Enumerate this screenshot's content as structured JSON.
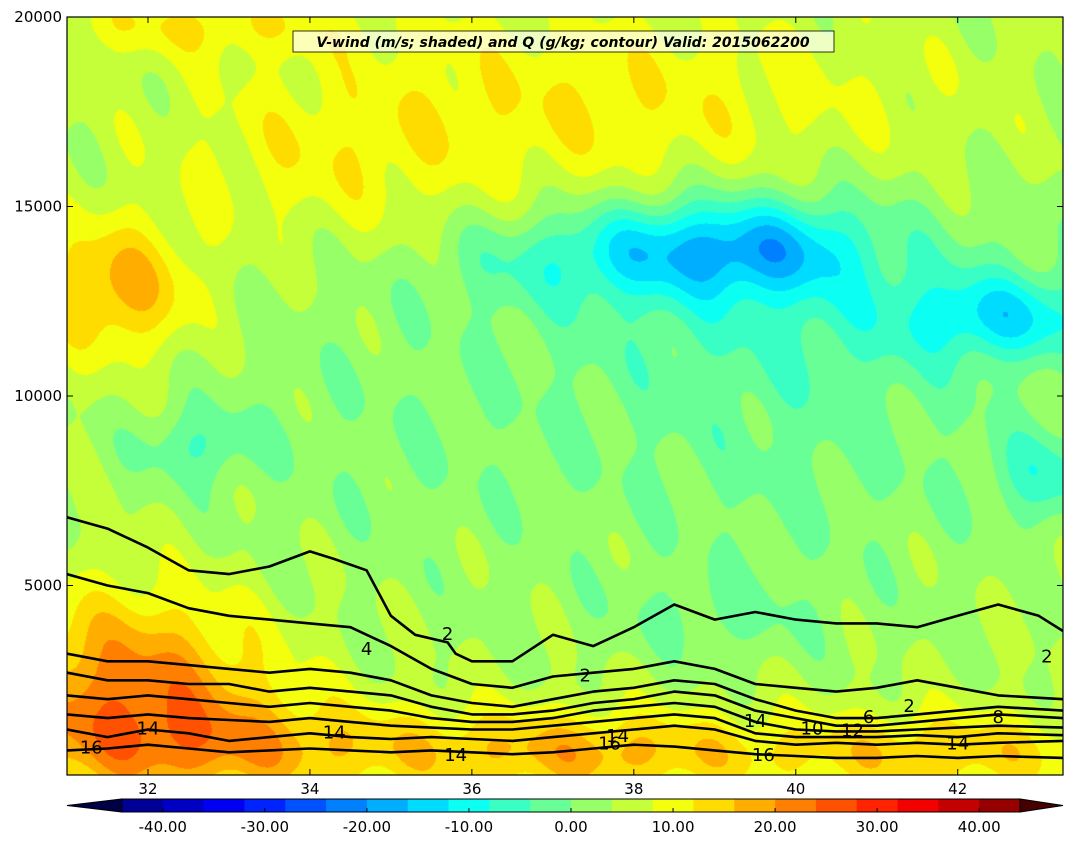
{
  "chart_data": {
    "type": "heatmap",
    "title": "V-wind (m/s; shaded) and Q (g/kg; contour) Valid: 2015062200",
    "xlabel": "",
    "ylabel": "",
    "xlim": [
      31.0,
      43.3
    ],
    "ylim": [
      0,
      20000
    ],
    "x_ticks": [
      32,
      34,
      36,
      38,
      40,
      42
    ],
    "y_ticks": [
      5000,
      10000,
      15000,
      20000
    ],
    "colorbar": {
      "ticks": [
        -40,
        -30,
        -20,
        -10,
        0,
        10,
        20,
        30,
        40
      ],
      "tick_labels": [
        "-40.00",
        "-30.00",
        "-20.00",
        "-10.00",
        "0.00",
        "10.00",
        "20.00",
        "30.00",
        "40.00"
      ],
      "range": [
        -44,
        44
      ],
      "step": 4,
      "extend": "both",
      "colormap": "jet"
    },
    "shaded_field": {
      "name": "V-wind (m/s)",
      "background_value": 4,
      "features": [
        {
          "x": 31.6,
          "y": 12800,
          "value": 14,
          "sx": 0.7,
          "sy": 1300
        },
        {
          "x": 31.8,
          "y": 2300,
          "value": 18,
          "sx": 1.2,
          "sy": 1800
        },
        {
          "x": 33.5,
          "y": 700,
          "value": 11,
          "sx": 2.0,
          "sy": 900
        },
        {
          "x": 37.6,
          "y": 600,
          "value": 12,
          "sx": 1.5,
          "sy": 800
        },
        {
          "x": 41.8,
          "y": 600,
          "value": 11,
          "sx": 1.6,
          "sy": 800
        },
        {
          "x": 38.3,
          "y": 13900,
          "value": -11,
          "sx": 0.8,
          "sy": 900
        },
        {
          "x": 39.7,
          "y": 13900,
          "value": -14,
          "sx": 0.8,
          "sy": 900
        },
        {
          "x": 42.6,
          "y": 12100,
          "value": -13,
          "sx": 0.9,
          "sy": 800
        },
        {
          "x": 40.0,
          "y": 12800,
          "value": -8,
          "sx": 2.2,
          "sy": 2200
        },
        {
          "x": 36.8,
          "y": 13600,
          "value": -6,
          "sx": 0.9,
          "sy": 900
        },
        {
          "x": 43.1,
          "y": 7900,
          "value": -9,
          "sx": 0.5,
          "sy": 900
        },
        {
          "x": 32.6,
          "y": 8700,
          "value": -7,
          "sx": 0.5,
          "sy": 700
        },
        {
          "x": 37.5,
          "y": 17500,
          "value": 8,
          "sx": 3.0,
          "sy": 2000
        },
        {
          "x": 34.0,
          "y": 16000,
          "value": 4,
          "sx": 1.2,
          "sy": 1500
        },
        {
          "x": 35.0,
          "y": 9000,
          "value": -3,
          "sx": 2.0,
          "sy": 3000
        },
        {
          "x": 40.0,
          "y": 8000,
          "value": -4,
          "sx": 2.0,
          "sy": 2500
        },
        {
          "x": 39.0,
          "y": 4200,
          "value": -4,
          "sx": 1.0,
          "sy": 800
        },
        {
          "x": 32.5,
          "y": 19800,
          "value": 7,
          "sx": 1.5,
          "sy": 600
        }
      ]
    },
    "contours": {
      "name": "Q (g/kg)",
      "levels": [
        {
          "value": 2,
          "points": [
            [
              31.0,
              6800
            ],
            [
              31.5,
              6500
            ],
            [
              32.0,
              6000
            ],
            [
              32.5,
              5400
            ],
            [
              33.0,
              5300
            ],
            [
              33.5,
              5500
            ],
            [
              34.0,
              5900
            ],
            [
              34.3,
              5700
            ],
            [
              34.7,
              5400
            ],
            [
              35.0,
              4200
            ],
            [
              35.3,
              3700
            ],
            [
              35.7,
              3500
            ],
            [
              35.8,
              3200
            ],
            [
              36.0,
              3000
            ],
            [
              36.5,
              3000
            ],
            [
              37.0,
              3700
            ],
            [
              37.5,
              3400
            ],
            [
              38.0,
              3900
            ],
            [
              38.5,
              4500
            ],
            [
              39.0,
              4100
            ],
            [
              39.5,
              4300
            ],
            [
              40.0,
              4100
            ],
            [
              40.5,
              4000
            ],
            [
              41.0,
              4000
            ],
            [
              41.5,
              3900
            ],
            [
              42.0,
              4200
            ],
            [
              42.5,
              4500
            ],
            [
              43.0,
              4200
            ],
            [
              43.3,
              3800
            ]
          ]
        },
        {
          "value": 4,
          "points": [
            [
              31.0,
              5300
            ],
            [
              31.5,
              5000
            ],
            [
              32.0,
              4800
            ],
            [
              32.5,
              4400
            ],
            [
              33.0,
              4200
            ],
            [
              33.5,
              4100
            ],
            [
              34.0,
              4000
            ],
            [
              34.5,
              3900
            ],
            [
              35.0,
              3400
            ],
            [
              35.5,
              2800
            ],
            [
              36.0,
              2400
            ],
            [
              36.5,
              2300
            ],
            [
              37.0,
              2600
            ],
            [
              37.5,
              2700
            ],
            [
              38.0,
              2800
            ],
            [
              38.5,
              3000
            ],
            [
              39.0,
              2800
            ],
            [
              39.5,
              2400
            ],
            [
              40.0,
              2300
            ],
            [
              40.5,
              2200
            ],
            [
              41.0,
              2300
            ],
            [
              41.5,
              2500
            ],
            [
              42.0,
              2300
            ],
            [
              42.5,
              2100
            ],
            [
              43.3,
              2000
            ]
          ]
        },
        {
          "value": 6,
          "points": [
            [
              31.0,
              3200
            ],
            [
              31.5,
              3000
            ],
            [
              32.0,
              3000
            ],
            [
              32.5,
              2900
            ],
            [
              33.0,
              2800
            ],
            [
              33.5,
              2700
            ],
            [
              34.0,
              2800
            ],
            [
              34.5,
              2700
            ],
            [
              35.0,
              2500
            ],
            [
              35.5,
              2100
            ],
            [
              36.0,
              1900
            ],
            [
              36.5,
              1800
            ],
            [
              37.0,
              2000
            ],
            [
              37.5,
              2200
            ],
            [
              38.0,
              2300
            ],
            [
              38.5,
              2500
            ],
            [
              39.0,
              2400
            ],
            [
              39.5,
              2000
            ],
            [
              40.0,
              1700
            ],
            [
              40.5,
              1500
            ],
            [
              41.0,
              1500
            ],
            [
              41.5,
              1600
            ],
            [
              42.0,
              1700
            ],
            [
              42.5,
              1800
            ],
            [
              43.3,
              1700
            ]
          ]
        },
        {
          "value": 8,
          "points": [
            [
              31.0,
              2700
            ],
            [
              31.5,
              2500
            ],
            [
              32.0,
              2500
            ],
            [
              32.5,
              2400
            ],
            [
              33.0,
              2400
            ],
            [
              33.5,
              2200
            ],
            [
              34.0,
              2300
            ],
            [
              34.5,
              2200
            ],
            [
              35.0,
              2100
            ],
            [
              35.5,
              1800
            ],
            [
              36.0,
              1600
            ],
            [
              36.5,
              1600
            ],
            [
              37.0,
              1700
            ],
            [
              37.5,
              1900
            ],
            [
              38.0,
              2000
            ],
            [
              38.5,
              2200
            ],
            [
              39.0,
              2100
            ],
            [
              39.5,
              1700
            ],
            [
              40.0,
              1500
            ],
            [
              40.5,
              1300
            ],
            [
              41.0,
              1300
            ],
            [
              41.5,
              1400
            ],
            [
              42.0,
              1500
            ],
            [
              42.5,
              1600
            ],
            [
              43.3,
              1500
            ]
          ]
        },
        {
          "value": 10,
          "points": [
            [
              31.0,
              2100
            ],
            [
              31.5,
              2000
            ],
            [
              32.0,
              2100
            ],
            [
              32.5,
              2000
            ],
            [
              33.0,
              1900
            ],
            [
              33.5,
              1800
            ],
            [
              34.0,
              1900
            ],
            [
              34.5,
              1800
            ],
            [
              35.0,
              1700
            ],
            [
              35.5,
              1500
            ],
            [
              36.0,
              1400
            ],
            [
              36.5,
              1400
            ],
            [
              37.0,
              1500
            ],
            [
              37.5,
              1700
            ],
            [
              38.0,
              1800
            ],
            [
              38.5,
              1900
            ],
            [
              39.0,
              1800
            ],
            [
              39.5,
              1400
            ],
            [
              40.0,
              1200
            ],
            [
              40.5,
              1150
            ],
            [
              41.0,
              1150
            ],
            [
              41.5,
              1200
            ],
            [
              42.0,
              1250
            ],
            [
              42.5,
              1300
            ],
            [
              43.3,
              1250
            ]
          ]
        },
        {
          "value": 12,
          "points": [
            [
              31.0,
              1600
            ],
            [
              31.5,
              1500
            ],
            [
              32.0,
              1600
            ],
            [
              32.5,
              1500
            ],
            [
              33.0,
              1450
            ],
            [
              33.5,
              1400
            ],
            [
              34.0,
              1500
            ],
            [
              34.5,
              1400
            ],
            [
              35.0,
              1300
            ],
            [
              35.5,
              1250
            ],
            [
              36.0,
              1200
            ],
            [
              36.5,
              1200
            ],
            [
              37.0,
              1300
            ],
            [
              37.5,
              1400
            ],
            [
              38.0,
              1500
            ],
            [
              38.5,
              1600
            ],
            [
              39.0,
              1500
            ],
            [
              39.5,
              1100
            ],
            [
              40.0,
              1000
            ],
            [
              40.5,
              1000
            ],
            [
              41.0,
              1000
            ],
            [
              41.5,
              1050
            ],
            [
              42.0,
              1000
            ],
            [
              42.5,
              1100
            ],
            [
              43.3,
              1050
            ]
          ]
        },
        {
          "value": 14,
          "points": [
            [
              31.0,
              1200
            ],
            [
              31.5,
              1000
            ],
            [
              32.0,
              1200
            ],
            [
              32.5,
              1100
            ],
            [
              33.0,
              900
            ],
            [
              33.5,
              1000
            ],
            [
              34.0,
              1100
            ],
            [
              34.5,
              1000
            ],
            [
              35.0,
              950
            ],
            [
              35.5,
              1000
            ],
            [
              36.0,
              950
            ],
            [
              36.5,
              900
            ],
            [
              37.0,
              1000
            ],
            [
              37.5,
              1100
            ],
            [
              38.0,
              1200
            ],
            [
              38.5,
              1300
            ],
            [
              39.0,
              1200
            ],
            [
              39.5,
              900
            ],
            [
              40.0,
              800
            ],
            [
              40.5,
              850
            ],
            [
              41.0,
              800
            ],
            [
              41.5,
              850
            ],
            [
              42.0,
              800
            ],
            [
              42.5,
              850
            ],
            [
              43.3,
              900
            ]
          ]
        },
        {
          "value": 16,
          "points": [
            [
              31.0,
              650
            ],
            [
              31.5,
              700
            ],
            [
              32.0,
              800
            ],
            [
              32.5,
              700
            ],
            [
              33.0,
              600
            ],
            [
              33.5,
              650
            ],
            [
              34.0,
              700
            ],
            [
              34.5,
              650
            ],
            [
              35.0,
              600
            ],
            [
              35.5,
              650
            ],
            [
              36.0,
              600
            ],
            [
              36.5,
              550
            ],
            [
              37.0,
              600
            ],
            [
              37.5,
              700
            ],
            [
              38.0,
              800
            ],
            [
              38.5,
              750
            ],
            [
              39.0,
              650
            ],
            [
              39.5,
              550
            ],
            [
              40.0,
              500
            ],
            [
              40.5,
              450
            ],
            [
              41.0,
              450
            ],
            [
              41.5,
              500
            ],
            [
              42.0,
              450
            ],
            [
              42.5,
              500
            ],
            [
              43.3,
              450
            ]
          ]
        }
      ],
      "labels": [
        {
          "text": "2",
          "x": 35.7,
          "y": 3700
        },
        {
          "text": "2",
          "x": 37.4,
          "y": 2600
        },
        {
          "text": "2",
          "x": 41.4,
          "y": 1800
        },
        {
          "text": "2",
          "x": 43.1,
          "y": 3100
        },
        {
          "text": "4",
          "x": 34.7,
          "y": 3300
        },
        {
          "text": "6",
          "x": 40.9,
          "y": 1500
        },
        {
          "text": "8",
          "x": 42.5,
          "y": 1500
        },
        {
          "text": "10",
          "x": 40.2,
          "y": 1200
        },
        {
          "text": "12",
          "x": 40.7,
          "y": 1150
        },
        {
          "text": "14",
          "x": 32.0,
          "y": 1200
        },
        {
          "text": "14",
          "x": 34.3,
          "y": 1100
        },
        {
          "text": "14",
          "x": 35.8,
          "y": 500
        },
        {
          "text": "14",
          "x": 37.8,
          "y": 1000
        },
        {
          "text": "14",
          "x": 39.5,
          "y": 1400
        },
        {
          "text": "14",
          "x": 42.0,
          "y": 800
        },
        {
          "text": "16",
          "x": 31.3,
          "y": 700
        },
        {
          "text": "16",
          "x": 37.7,
          "y": 800
        },
        {
          "text": "16",
          "x": 39.6,
          "y": 500
        }
      ]
    }
  }
}
